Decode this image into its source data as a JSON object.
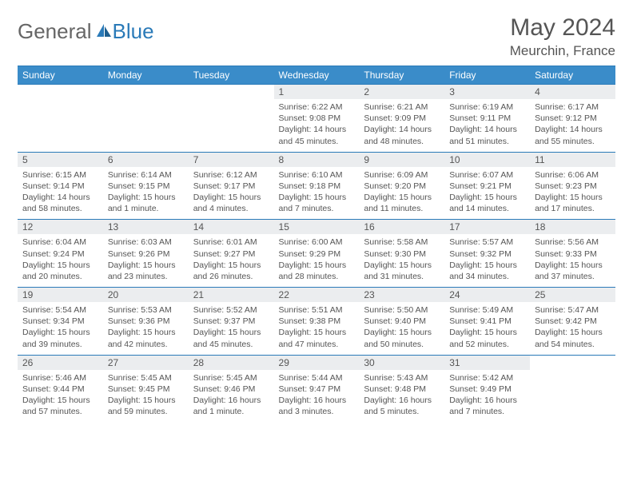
{
  "brand": {
    "part1": "General",
    "part2": "Blue"
  },
  "title": "May 2024",
  "location": "Meurchin, France",
  "colors": {
    "header_bg": "#3a8cc9",
    "border": "#2a7ab8",
    "daynum_bg": "#ebedef",
    "text": "#555555"
  },
  "weekday_labels": [
    "Sunday",
    "Monday",
    "Tuesday",
    "Wednesday",
    "Thursday",
    "Friday",
    "Saturday"
  ],
  "weeks": [
    [
      null,
      null,
      null,
      {
        "n": "1",
        "sr": "6:22 AM",
        "ss": "9:08 PM",
        "dl": "14 hours and 45 minutes."
      },
      {
        "n": "2",
        "sr": "6:21 AM",
        "ss": "9:09 PM",
        "dl": "14 hours and 48 minutes."
      },
      {
        "n": "3",
        "sr": "6:19 AM",
        "ss": "9:11 PM",
        "dl": "14 hours and 51 minutes."
      },
      {
        "n": "4",
        "sr": "6:17 AM",
        "ss": "9:12 PM",
        "dl": "14 hours and 55 minutes."
      }
    ],
    [
      {
        "n": "5",
        "sr": "6:15 AM",
        "ss": "9:14 PM",
        "dl": "14 hours and 58 minutes."
      },
      {
        "n": "6",
        "sr": "6:14 AM",
        "ss": "9:15 PM",
        "dl": "15 hours and 1 minute."
      },
      {
        "n": "7",
        "sr": "6:12 AM",
        "ss": "9:17 PM",
        "dl": "15 hours and 4 minutes."
      },
      {
        "n": "8",
        "sr": "6:10 AM",
        "ss": "9:18 PM",
        "dl": "15 hours and 7 minutes."
      },
      {
        "n": "9",
        "sr": "6:09 AM",
        "ss": "9:20 PM",
        "dl": "15 hours and 11 minutes."
      },
      {
        "n": "10",
        "sr": "6:07 AM",
        "ss": "9:21 PM",
        "dl": "15 hours and 14 minutes."
      },
      {
        "n": "11",
        "sr": "6:06 AM",
        "ss": "9:23 PM",
        "dl": "15 hours and 17 minutes."
      }
    ],
    [
      {
        "n": "12",
        "sr": "6:04 AM",
        "ss": "9:24 PM",
        "dl": "15 hours and 20 minutes."
      },
      {
        "n": "13",
        "sr": "6:03 AM",
        "ss": "9:26 PM",
        "dl": "15 hours and 23 minutes."
      },
      {
        "n": "14",
        "sr": "6:01 AM",
        "ss": "9:27 PM",
        "dl": "15 hours and 26 minutes."
      },
      {
        "n": "15",
        "sr": "6:00 AM",
        "ss": "9:29 PM",
        "dl": "15 hours and 28 minutes."
      },
      {
        "n": "16",
        "sr": "5:58 AM",
        "ss": "9:30 PM",
        "dl": "15 hours and 31 minutes."
      },
      {
        "n": "17",
        "sr": "5:57 AM",
        "ss": "9:32 PM",
        "dl": "15 hours and 34 minutes."
      },
      {
        "n": "18",
        "sr": "5:56 AM",
        "ss": "9:33 PM",
        "dl": "15 hours and 37 minutes."
      }
    ],
    [
      {
        "n": "19",
        "sr": "5:54 AM",
        "ss": "9:34 PM",
        "dl": "15 hours and 39 minutes."
      },
      {
        "n": "20",
        "sr": "5:53 AM",
        "ss": "9:36 PM",
        "dl": "15 hours and 42 minutes."
      },
      {
        "n": "21",
        "sr": "5:52 AM",
        "ss": "9:37 PM",
        "dl": "15 hours and 45 minutes."
      },
      {
        "n": "22",
        "sr": "5:51 AM",
        "ss": "9:38 PM",
        "dl": "15 hours and 47 minutes."
      },
      {
        "n": "23",
        "sr": "5:50 AM",
        "ss": "9:40 PM",
        "dl": "15 hours and 50 minutes."
      },
      {
        "n": "24",
        "sr": "5:49 AM",
        "ss": "9:41 PM",
        "dl": "15 hours and 52 minutes."
      },
      {
        "n": "25",
        "sr": "5:47 AM",
        "ss": "9:42 PM",
        "dl": "15 hours and 54 minutes."
      }
    ],
    [
      {
        "n": "26",
        "sr": "5:46 AM",
        "ss": "9:44 PM",
        "dl": "15 hours and 57 minutes."
      },
      {
        "n": "27",
        "sr": "5:45 AM",
        "ss": "9:45 PM",
        "dl": "15 hours and 59 minutes."
      },
      {
        "n": "28",
        "sr": "5:45 AM",
        "ss": "9:46 PM",
        "dl": "16 hours and 1 minute."
      },
      {
        "n": "29",
        "sr": "5:44 AM",
        "ss": "9:47 PM",
        "dl": "16 hours and 3 minutes."
      },
      {
        "n": "30",
        "sr": "5:43 AM",
        "ss": "9:48 PM",
        "dl": "16 hours and 5 minutes."
      },
      {
        "n": "31",
        "sr": "5:42 AM",
        "ss": "9:49 PM",
        "dl": "16 hours and 7 minutes."
      },
      null
    ]
  ],
  "labels": {
    "sunrise": "Sunrise:",
    "sunset": "Sunset:",
    "daylight": "Daylight:"
  }
}
